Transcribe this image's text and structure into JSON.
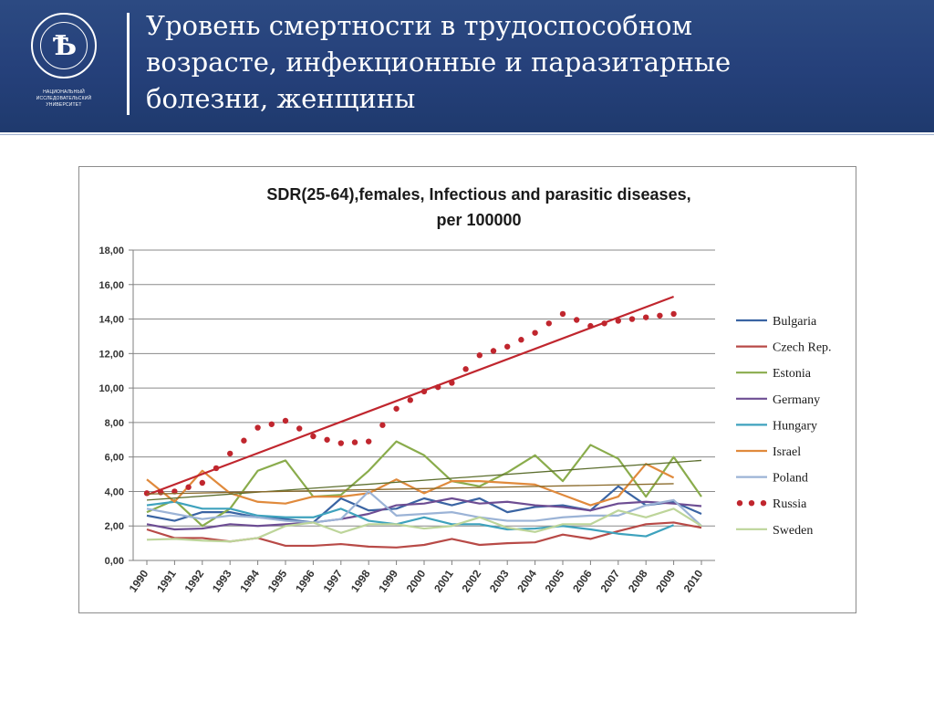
{
  "header": {
    "logo_caption": "НАЦИОНАЛЬНЫЙ ИССЛЕДОВАТЕЛЬСКИЙ УНИВЕРСИТЕТ",
    "title_lines": [
      "Уровень смертности в трудоспособном",
      "возрасте, инфекционные и паразитарные",
      "болезни, женщины"
    ],
    "colors": {
      "band": "#25407a",
      "text": "#ffffff"
    }
  },
  "chart_data": {
    "type": "line",
    "title": "SDR(25-64),females, Infectious and parasitic diseases,",
    "subtitle": "per 100000",
    "x": [
      "1990",
      "1991",
      "1992",
      "1993",
      "1994",
      "1995",
      "1996",
      "1997",
      "1998",
      "1999",
      "2000",
      "2001",
      "2002",
      "2003",
      "2004",
      "2005",
      "2006",
      "2007",
      "2008",
      "2009",
      "2010"
    ],
    "ylim": [
      0,
      18
    ],
    "yticks": [
      "0,00",
      "2,00",
      "4,00",
      "6,00",
      "8,00",
      "10,00",
      "12,00",
      "14,00",
      "16,00",
      "18,00"
    ],
    "grid": true,
    "legend": "right",
    "series": [
      {
        "name": "Bulgaria",
        "color": "#3a64a3",
        "style": "line",
        "values": [
          2.6,
          2.3,
          2.8,
          2.8,
          2.5,
          2.4,
          2.2,
          3.6,
          2.9,
          3.0,
          3.6,
          3.2,
          3.6,
          2.8,
          3.1,
          3.2,
          2.9,
          4.3,
          3.2,
          3.4,
          2.7
        ]
      },
      {
        "name": "Czech Rep.",
        "color": "#b84a47",
        "style": "line",
        "values": [
          1.8,
          1.3,
          1.3,
          1.1,
          1.3,
          0.85,
          0.85,
          0.95,
          0.8,
          0.75,
          0.9,
          1.25,
          0.9,
          1.0,
          1.05,
          1.5,
          1.25,
          1.7,
          2.1,
          2.2,
          1.9
        ]
      },
      {
        "name": "Estonia",
        "color": "#8aac4c",
        "style": "line",
        "values": [
          2.8,
          3.5,
          2.0,
          3.0,
          5.2,
          5.8,
          3.7,
          3.8,
          5.2,
          6.9,
          6.1,
          4.6,
          4.3,
          5.1,
          6.1,
          4.6,
          6.7,
          5.9,
          3.7,
          6.0,
          3.7
        ]
      },
      {
        "name": "Germany",
        "color": "#6d4d93",
        "style": "line",
        "values": [
          2.1,
          1.8,
          1.85,
          2.1,
          2.0,
          2.1,
          2.2,
          2.4,
          2.7,
          3.2,
          3.3,
          3.6,
          3.3,
          3.4,
          3.2,
          3.1,
          2.9,
          3.3,
          3.4,
          3.3,
          3.15
        ]
      },
      {
        "name": "Hungary",
        "color": "#3ea2bd",
        "style": "line",
        "values": [
          3.2,
          3.4,
          3.0,
          3.0,
          2.6,
          2.5,
          2.5,
          3.0,
          2.3,
          2.1,
          2.5,
          2.1,
          2.1,
          1.8,
          1.85,
          2.0,
          1.8,
          1.55,
          1.4,
          2.05,
          null
        ]
      },
      {
        "name": "Israel",
        "color": "#e08a3c",
        "style": "line",
        "values": [
          4.7,
          3.4,
          5.2,
          3.9,
          3.4,
          3.3,
          3.7,
          3.7,
          3.9,
          4.7,
          3.9,
          4.6,
          4.6,
          4.5,
          4.4,
          3.8,
          3.2,
          3.7,
          5.6,
          4.8,
          null
        ]
      },
      {
        "name": "Poland",
        "color": "#9bb3d6",
        "style": "line",
        "values": [
          3.0,
          2.7,
          2.4,
          2.6,
          2.5,
          2.3,
          2.2,
          2.4,
          4.0,
          2.6,
          2.7,
          2.8,
          2.5,
          2.3,
          2.3,
          2.5,
          2.6,
          2.6,
          3.2,
          3.5,
          2.0
        ]
      },
      {
        "name": "Russia",
        "color": "#c0262e",
        "style": "dots",
        "values": [
          3.9,
          4.0,
          4.5,
          6.2,
          7.7,
          8.1,
          7.2,
          6.8,
          6.9,
          8.8,
          9.8,
          10.3,
          11.9,
          12.4,
          13.2,
          14.3,
          13.6,
          13.9,
          14.1,
          14.3,
          null
        ]
      },
      {
        "name": "Sweden",
        "color": "#bdd59a",
        "style": "line",
        "values": [
          1.2,
          1.25,
          1.15,
          1.1,
          1.3,
          2.0,
          2.2,
          1.6,
          2.1,
          2.1,
          1.85,
          2.0,
          2.5,
          1.9,
          1.65,
          2.1,
          2.1,
          2.9,
          2.5,
          3.0,
          2.0
        ]
      }
    ],
    "trendlines": [
      {
        "series": "Russia",
        "color": "#c0262e",
        "from": [
          1990,
          3.8
        ],
        "to": [
          2009,
          15.3
        ]
      },
      {
        "series": "Estonia",
        "color": "#5c6e2e",
        "from": [
          1990,
          3.5
        ],
        "to": [
          2010,
          5.8
        ]
      },
      {
        "series": "Israel",
        "color": "#8a6a2a",
        "from": [
          1990,
          3.85
        ],
        "to": [
          2009,
          4.45
        ]
      }
    ]
  }
}
